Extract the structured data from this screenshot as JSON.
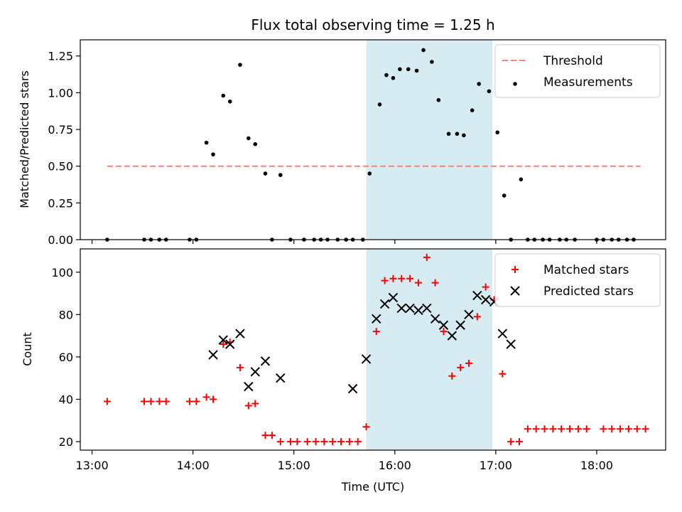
{
  "chart_data": [
    {
      "type": "scatter",
      "title": "Flux total observing time = 1.25 h",
      "xlabel": "",
      "ylabel": "Matched/Predicted stars",
      "xlim": [
        "12:53",
        "18:41"
      ],
      "ylim": [
        0,
        1.36
      ],
      "yticks": [
        0.0,
        0.25,
        0.5,
        0.75,
        1.0,
        1.25
      ],
      "ytick_labels": [
        "0.00",
        "0.25",
        "0.50",
        "0.75",
        "1.00",
        "1.25"
      ],
      "shaded_region": {
        "x": [
          "15:43",
          "16:58"
        ],
        "color": "#add8e6"
      },
      "legend_position": "upper right",
      "threshold": {
        "name": "Threshold",
        "y": 0.5,
        "x": [
          "13:09",
          "18:26"
        ],
        "color": "#ff7f7f"
      },
      "series": [
        {
          "name": "Measurements",
          "marker": "dot",
          "color": "#000000",
          "x": [
            "13:09",
            "13:31",
            "13:35",
            "13:40",
            "13:44",
            "13:58",
            "14:02",
            "14:08",
            "14:12",
            "14:18",
            "14:22",
            "14:28",
            "14:33",
            "14:37",
            "14:43",
            "14:47",
            "14:52",
            "14:58",
            "15:06",
            "15:12",
            "15:16",
            "15:20",
            "15:26",
            "15:31",
            "15:35",
            "15:41",
            "15:45",
            "15:51",
            "15:55",
            "15:59",
            "16:03",
            "16:08",
            "16:13",
            "16:17",
            "16:22",
            "16:26",
            "16:32",
            "16:37",
            "16:41",
            "16:46",
            "16:50",
            "16:56",
            "17:01",
            "17:05",
            "17:09",
            "17:15",
            "17:19",
            "17:23",
            "17:28",
            "17:32",
            "17:38",
            "17:42",
            "17:47",
            "18:00",
            "18:04",
            "18:09",
            "18:13",
            "18:18",
            "18:22"
          ],
          "y": [
            0,
            0,
            0,
            0,
            0,
            0,
            0,
            0.66,
            0.58,
            0.98,
            0.94,
            1.19,
            0.69,
            0.65,
            0.45,
            0,
            0.44,
            0,
            0,
            0,
            0,
            0,
            0,
            0,
            0,
            0,
            0.45,
            0.92,
            1.12,
            1.1,
            1.16,
            1.16,
            1.15,
            1.29,
            1.21,
            0.95,
            0.72,
            0.72,
            0.71,
            0.88,
            1.06,
            1.01,
            0.73,
            0.3,
            0,
            0.41,
            0,
            0,
            0,
            0,
            0,
            0,
            0,
            0,
            0,
            0,
            0,
            0,
            0
          ]
        }
      ]
    },
    {
      "type": "scatter",
      "title": "",
      "xlabel": "Time (UTC)",
      "ylabel": "Count",
      "xlim": [
        "12:53",
        "18:41"
      ],
      "ylim": [
        16,
        111
      ],
      "yticks": [
        20,
        40,
        60,
        80,
        100
      ],
      "ytick_labels": [
        "20",
        "40",
        "60",
        "80",
        "100"
      ],
      "xticks": [
        "13:00",
        "14:00",
        "15:00",
        "16:00",
        "17:00",
        "18:00"
      ],
      "shaded_region": {
        "x": [
          "15:43",
          "16:58"
        ],
        "color": "#add8e6"
      },
      "legend_position": "upper right",
      "series": [
        {
          "name": "Matched stars",
          "marker": "plus",
          "color": "#ff0000",
          "x": [
            "13:09",
            "13:31",
            "13:35",
            "13:40",
            "13:44",
            "13:58",
            "14:02",
            "14:08",
            "14:12",
            "14:18",
            "14:22",
            "14:28",
            "14:33",
            "14:37",
            "14:43",
            "14:47",
            "14:52",
            "14:58",
            "15:02",
            "15:08",
            "15:13",
            "15:18",
            "15:23",
            "15:28",
            "15:33",
            "15:38",
            "15:43",
            "15:49",
            "15:54",
            "15:59",
            "16:04",
            "16:09",
            "16:14",
            "16:19",
            "16:24",
            "16:29",
            "16:34",
            "16:39",
            "16:44",
            "16:49",
            "16:54",
            "16:59",
            "17:04",
            "17:09",
            "17:14",
            "17:19",
            "17:24",
            "17:29",
            "17:34",
            "17:39",
            "17:44",
            "17:49",
            "17:54",
            "18:04",
            "18:09",
            "18:14",
            "18:19",
            "18:24",
            "18:29"
          ],
          "y": [
            39,
            39,
            39,
            39,
            39,
            39,
            39,
            41,
            40,
            66,
            67,
            55,
            37,
            38,
            23,
            23,
            20,
            20,
            20,
            20,
            20,
            20,
            20,
            20,
            20,
            20,
            27,
            72,
            96,
            97,
            97,
            97,
            95,
            107,
            95,
            72,
            51,
            55,
            57,
            79,
            93,
            87,
            52,
            20,
            20,
            26,
            26,
            26,
            26,
            26,
            26,
            26,
            26,
            26,
            26,
            26,
            26,
            26,
            26
          ]
        },
        {
          "name": "Predicted stars",
          "marker": "x",
          "color": "#000000",
          "x": [
            "14:12",
            "14:18",
            "14:22",
            "14:28",
            "14:33",
            "14:37",
            "14:43",
            "14:52",
            "15:35",
            "15:43",
            "15:49",
            "15:54",
            "15:59",
            "16:04",
            "16:09",
            "16:14",
            "16:19",
            "16:24",
            "16:29",
            "16:34",
            "16:39",
            "16:44",
            "16:49",
            "16:54",
            "16:59",
            "17:04",
            "17:09"
          ],
          "y": [
            61,
            68,
            66,
            71,
            46,
            53,
            58,
            50,
            45,
            59,
            78,
            85,
            88,
            83,
            83,
            82,
            83,
            78,
            75,
            70,
            75,
            80,
            89,
            87,
            86,
            71,
            66
          ]
        }
      ]
    }
  ]
}
